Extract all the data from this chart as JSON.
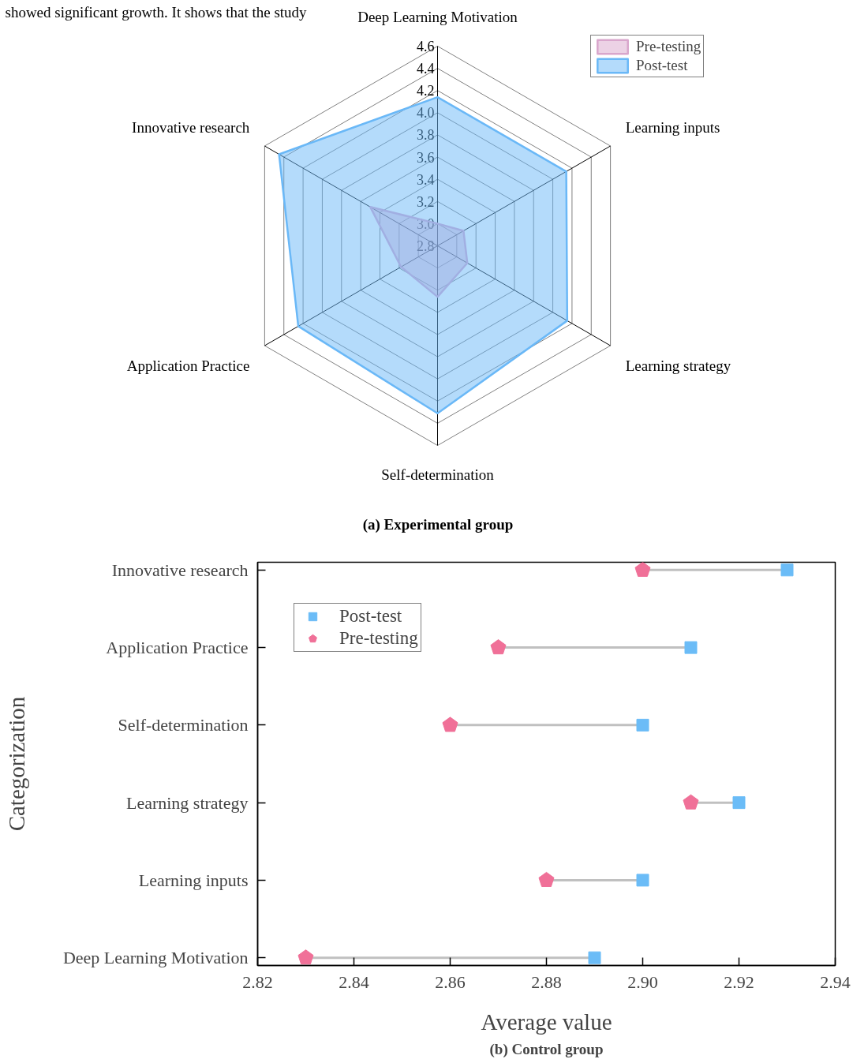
{
  "chart_data": [
    {
      "type": "radar",
      "title": "(a) Experimental group",
      "annotations": [
        "showed significant growth. It shows that the study"
      ],
      "categories": [
        "Deep Learning Motivation",
        "Learning inputs",
        "Learning strategy",
        "Self-determination",
        "Application Practice",
        "Innovative research"
      ],
      "ylim": [
        2.8,
        4.6
      ],
      "yticks": [
        {
          "value": 2.8,
          "label": "2.8"
        },
        {
          "value": 3.0,
          "label": "3.0"
        },
        {
          "value": 3.2,
          "label": "3.2"
        },
        {
          "value": 3.4,
          "label": "3.4"
        },
        {
          "value": 3.6,
          "label": "3.6"
        },
        {
          "value": 3.8,
          "label": "3.8"
        },
        {
          "value": 4.0,
          "label": "4.0"
        },
        {
          "value": 4.2,
          "label": "4.2"
        },
        {
          "value": 4.4,
          "label": "4.4"
        },
        {
          "value": 4.6,
          "label": "4.6"
        }
      ],
      "grid": true,
      "legend": "top right",
      "series": [
        {
          "name": "Pre-testing",
          "color": "#d9a6cc",
          "values": [
            3.0,
            3.07,
            3.11,
            3.26,
            3.18,
            3.5
          ]
        },
        {
          "name": "Post-test",
          "color": "#6ab8f7",
          "values": [
            4.14,
            4.14,
            4.15,
            4.31,
            4.25,
            4.45
          ]
        }
      ]
    },
    {
      "type": "scatter",
      "orientation": "horizontal",
      "title": "(b) Control group",
      "xlabel": "Average value",
      "ylabel": "Categorization",
      "categories": [
        "Innovative research",
        "Application Practice",
        "Self-determination",
        "Learning strategy",
        "Learning inputs",
        "Deep Learning Motivation"
      ],
      "xlim": [
        2.82,
        2.94
      ],
      "xticks": [
        {
          "value": 2.82,
          "label": "2.82"
        },
        {
          "value": 2.84,
          "label": "2.84"
        },
        {
          "value": 2.86,
          "label": "2.86"
        },
        {
          "value": 2.88,
          "label": "2.88"
        },
        {
          "value": 2.9,
          "label": "2.90"
        },
        {
          "value": 2.92,
          "label": "2.92"
        },
        {
          "value": 2.94,
          "label": "2.94"
        }
      ],
      "grid": false,
      "legend": "top left",
      "series": [
        {
          "name": "Post-test",
          "color": "#6bbcf7",
          "marker": "square",
          "values": [
            2.93,
            2.91,
            2.9,
            2.92,
            2.9,
            2.89
          ]
        },
        {
          "name": "Pre-testing",
          "color": "#f07098",
          "values": [
            2.9,
            2.87,
            2.86,
            2.91,
            2.88,
            2.83
          ]
        }
      ]
    }
  ]
}
